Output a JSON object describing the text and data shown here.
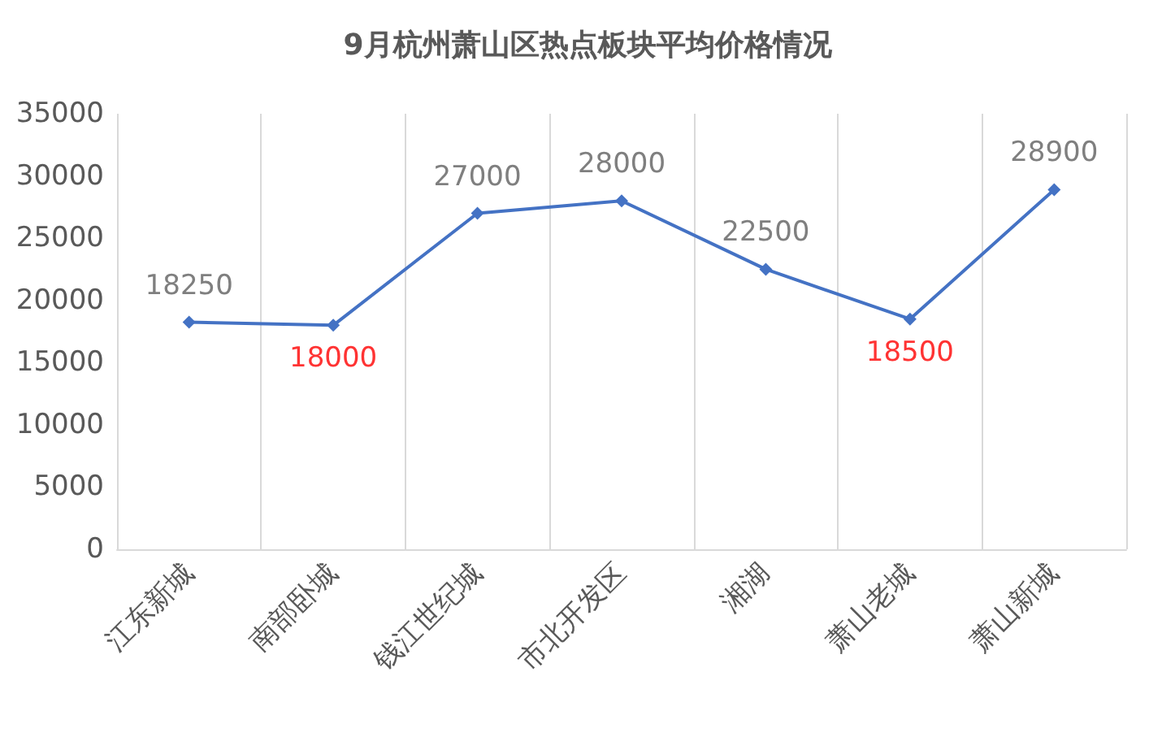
{
  "chart_data": {
    "type": "line",
    "title": "9月杭州萧山区热点板块平均价格情况",
    "categories": [
      "江东新城",
      "南部卧城",
      "钱江世纪城",
      "市北开发区",
      "湘湖",
      "萧山老城",
      "萧山新城"
    ],
    "series": [
      {
        "color": "#4472c4",
        "values": [
          18250,
          18000,
          27000,
          28000,
          22500,
          18500,
          28900
        ],
        "value_labels": [
          "18250",
          null,
          "27000",
          "28000",
          "22500",
          null,
          "28900"
        ]
      }
    ],
    "annotations": [
      {
        "text": "18000",
        "x": "南部卧城",
        "y": 18000
      },
      {
        "text": "18500",
        "x": "萧山老城",
        "y": 18500
      }
    ],
    "ylim": [
      0,
      35000
    ],
    "yticks": [
      0,
      5000,
      10000,
      15000,
      20000,
      25000,
      30000,
      35000
    ],
    "grid": "x",
    "marker": "diamond",
    "line_style": "solid"
  }
}
